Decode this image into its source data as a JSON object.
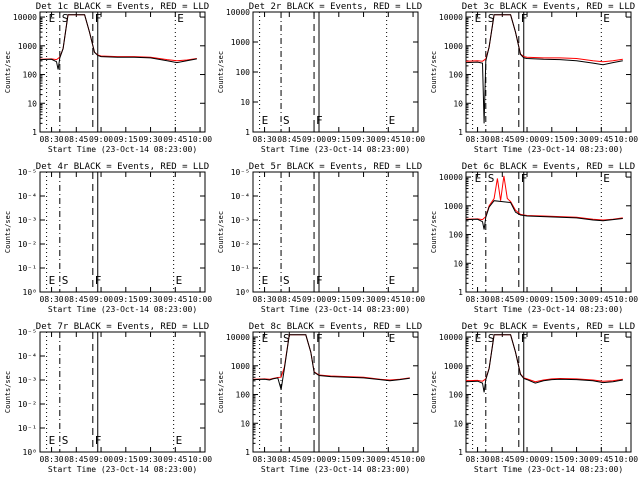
{
  "figure": {
    "xlabel": "Start Time (23-Oct-14 08:23:00)",
    "ylabel": "Counts/sec"
  },
  "chart_data": [
    {
      "type": "line",
      "title": "Det 1c BLACK = Events, RED = LLD",
      "xlabel": "Start Time (23-Oct-14 08:23:00)",
      "ylabel": "Counts/sec",
      "ylog": true,
      "yticks": [
        "1",
        "10",
        "100",
        "1000",
        "10000"
      ],
      "xticks": [
        "08:30",
        "08:45",
        "09:00",
        "09:15",
        "09:30",
        "09:45",
        "10:00"
      ],
      "markers": [
        {
          "label": "E",
          "style": "dotted",
          "time": "08:27"
        },
        {
          "label": "S",
          "style": "dashdot",
          "time": "08:35"
        },
        {
          "label": "F",
          "style": "dashed",
          "time": "08:55"
        },
        {
          "label": "",
          "style": "solid",
          "time": "08:58"
        },
        {
          "label": "E",
          "style": "dotted",
          "time": "09:45"
        }
      ],
      "series": [
        {
          "name": "Events",
          "color": "#000000",
          "x": [
            "08:23",
            "08:30",
            "08:33",
            "08:34",
            "08:35",
            "08:37",
            "08:40",
            "08:50",
            "08:53",
            "08:56",
            "08:58",
            "09:00",
            "09:10",
            "09:20",
            "09:30",
            "09:40",
            "09:46",
            "09:52",
            "09:58"
          ],
          "y": [
            330,
            340,
            280,
            150,
            380,
            800,
            12000,
            12000,
            3000,
            600,
            460,
            420,
            400,
            400,
            380,
            300,
            260,
            300,
            350
          ]
        },
        {
          "name": "LLD",
          "color": "#ff0000",
          "x": [
            "08:23",
            "08:30",
            "08:33",
            "08:35",
            "08:37",
            "08:40",
            "08:50",
            "08:53",
            "08:56",
            "08:58",
            "09:00",
            "09:10",
            "09:20",
            "09:30",
            "09:40",
            "09:46",
            "09:52",
            "09:58"
          ],
          "y": [
            340,
            350,
            330,
            400,
            800,
            12000,
            12000,
            3000,
            600,
            480,
            440,
            420,
            420,
            400,
            330,
            300,
            320,
            360
          ]
        }
      ]
    },
    {
      "type": "line",
      "title": "Det 2r BLACK = Events, RED = LLD",
      "xlabel": "Start Time (23-Oct-14 08:23:00)",
      "ylabel": "Counts/sec",
      "ylog": true,
      "yticks": [
        "1",
        "10",
        "100",
        "1000",
        "10000"
      ],
      "xticks": [
        "08:30",
        "08:45",
        "09:00",
        "09:15",
        "09:30",
        "09:45",
        "10:00"
      ],
      "markers": [
        {
          "label": "E",
          "style": "dotted",
          "time": "08:27"
        },
        {
          "label": "S",
          "style": "dashdot",
          "time": "08:40"
        },
        {
          "label": "F",
          "style": "dashed",
          "time": "09:00"
        },
        {
          "label": "",
          "style": "solid",
          "time": "09:03"
        },
        {
          "label": "E",
          "style": "dotted",
          "time": "09:44"
        }
      ],
      "series": []
    },
    {
      "type": "line",
      "title": "Det 3c BLACK = Events, RED = LLD",
      "xlabel": "Start Time (23-Oct-14 08:23:00)",
      "ylabel": "Counts/sec",
      "ylog": true,
      "yticks": [
        "1",
        "10",
        "100",
        "1000",
        "10000"
      ],
      "xticks": [
        "08:30",
        "08:45",
        "09:00",
        "09:15",
        "09:30",
        "09:45",
        "10:00"
      ],
      "markers": [
        {
          "label": "E",
          "style": "dotted",
          "time": "08:27"
        },
        {
          "label": "S",
          "style": "dashdot",
          "time": "08:35"
        },
        {
          "label": "F",
          "style": "dashed",
          "time": "08:55"
        },
        {
          "label": "",
          "style": "solid",
          "time": "08:58"
        },
        {
          "label": "E",
          "style": "dotted",
          "time": "09:45"
        }
      ],
      "series": [
        {
          "name": "Events",
          "color": "#000000",
          "x": [
            "08:23",
            "08:30",
            "08:33",
            "08:34",
            "08:35",
            "08:37",
            "08:40",
            "08:50",
            "08:53",
            "08:56",
            "08:58",
            "09:00",
            "09:10",
            "09:20",
            "09:30",
            "09:40",
            "09:46",
            "09:52",
            "09:58"
          ],
          "y": [
            260,
            270,
            250,
            2,
            300,
            900,
            12000,
            12000,
            3000,
            500,
            380,
            360,
            340,
            330,
            300,
            250,
            220,
            260,
            300
          ]
        },
        {
          "name": "LLD",
          "color": "#ff0000",
          "x": [
            "08:23",
            "08:30",
            "08:33",
            "08:35",
            "08:37",
            "08:40",
            "08:50",
            "08:53",
            "08:56",
            "08:58",
            "09:00",
            "09:10",
            "09:20",
            "09:30",
            "09:40",
            "09:46",
            "09:52",
            "09:58"
          ],
          "y": [
            290,
            300,
            290,
            350,
            900,
            12000,
            12000,
            3000,
            520,
            420,
            400,
            380,
            380,
            360,
            300,
            280,
            300,
            340
          ]
        }
      ]
    },
    {
      "type": "line",
      "title": "Det 4r BLACK = Events, RED = LLD",
      "xlabel": "Start Time (23-Oct-14 08:23:00)",
      "ylabel": "Counts/sec",
      "ylog": true,
      "yticks": [
        "10⁰",
        "10⁻¹",
        "10⁻²",
        "10⁻³",
        "10⁻⁴",
        "10⁻⁵"
      ],
      "xticks": [
        "08:30",
        "08:45",
        "09:00",
        "09:15",
        "09:30",
        "09:45",
        "10:00"
      ],
      "markers": [
        {
          "label": "E",
          "style": "dotted",
          "time": "08:27"
        },
        {
          "label": "S",
          "style": "dashdot",
          "time": "08:35"
        },
        {
          "label": "F",
          "style": "dashed",
          "time": "08:55"
        },
        {
          "label": "",
          "style": "solid",
          "time": "08:58"
        },
        {
          "label": "E",
          "style": "dotted",
          "time": "09:44"
        }
      ],
      "series": []
    },
    {
      "type": "line",
      "title": "Det 5r BLACK = Events, RED = LLD",
      "xlabel": "Start Time (23-Oct-14 08:23:00)",
      "ylabel": "Counts/sec",
      "ylog": true,
      "yticks": [
        "10⁰",
        "10⁻¹",
        "10⁻²",
        "10⁻³",
        "10⁻⁴",
        "10⁻⁵"
      ],
      "xticks": [
        "08:30",
        "08:45",
        "09:00",
        "09:15",
        "09:30",
        "09:45",
        "10:00"
      ],
      "markers": [
        {
          "label": "E",
          "style": "dotted",
          "time": "08:27"
        },
        {
          "label": "S",
          "style": "dashdot",
          "time": "08:40"
        },
        {
          "label": "F",
          "style": "dashed",
          "time": "09:00"
        },
        {
          "label": "",
          "style": "solid",
          "time": "09:03"
        },
        {
          "label": "E",
          "style": "dotted",
          "time": "09:44"
        }
      ],
      "series": []
    },
    {
      "type": "line",
      "title": "Det 6c BLACK = Events, RED = LLD",
      "xlabel": "Start Time (23-Oct-14 08:23:00)",
      "ylabel": "Counts/sec",
      "ylog": true,
      "yticks": [
        "1",
        "10",
        "100",
        "1000",
        "10000"
      ],
      "xticks": [
        "08:30",
        "08:45",
        "09:00",
        "09:15",
        "09:30",
        "09:45",
        "10:00"
      ],
      "markers": [
        {
          "label": "E",
          "style": "dotted",
          "time": "08:27"
        },
        {
          "label": "S",
          "style": "dashdot",
          "time": "08:35"
        },
        {
          "label": "F",
          "style": "dashed",
          "time": "08:55"
        },
        {
          "label": "",
          "style": "solid",
          "time": "08:58"
        },
        {
          "label": "E",
          "style": "dotted",
          "time": "09:45"
        }
      ],
      "series": [
        {
          "name": "Events",
          "color": "#000000",
          "x": [
            "08:23",
            "08:30",
            "08:33",
            "08:34",
            "08:35",
            "08:37",
            "08:40",
            "08:45",
            "08:50",
            "08:53",
            "08:56",
            "08:58",
            "09:00",
            "09:10",
            "09:20",
            "09:30",
            "09:40",
            "09:46",
            "09:52",
            "09:58"
          ],
          "y": [
            330,
            340,
            280,
            150,
            400,
            900,
            1500,
            1400,
            1300,
            600,
            480,
            460,
            440,
            420,
            400,
            380,
            320,
            300,
            330,
            360
          ]
        },
        {
          "name": "LLD",
          "color": "#ff0000",
          "x": [
            "08:23",
            "08:30",
            "08:33",
            "08:35",
            "08:37",
            "08:40",
            "08:42",
            "08:44",
            "08:46",
            "08:48",
            "08:50",
            "08:53",
            "08:56",
            "08:58",
            "09:00",
            "09:10",
            "09:20",
            "09:30",
            "09:40",
            "09:46",
            "09:52",
            "09:58"
          ],
          "y": [
            340,
            350,
            330,
            420,
            1000,
            1800,
            9000,
            1500,
            11000,
            1800,
            1400,
            700,
            500,
            480,
            460,
            440,
            420,
            400,
            340,
            320,
            340,
            380
          ]
        }
      ]
    },
    {
      "type": "line",
      "title": "Det 7r BLACK = Events, RED = LLD",
      "xlabel": "Start Time (23-Oct-14 08:23:00)",
      "ylabel": "Counts/sec",
      "ylog": true,
      "yticks": [
        "10⁰",
        "10⁻¹",
        "10⁻²",
        "10⁻³",
        "10⁻⁴",
        "10⁻⁵"
      ],
      "xticks": [
        "08:30",
        "08:45",
        "09:00",
        "09:15",
        "09:30",
        "09:45",
        "10:00"
      ],
      "markers": [
        {
          "label": "E",
          "style": "dotted",
          "time": "08:27"
        },
        {
          "label": "S",
          "style": "dashdot",
          "time": "08:35"
        },
        {
          "label": "F",
          "style": "dashed",
          "time": "08:55"
        },
        {
          "label": "",
          "style": "solid",
          "time": "08:58"
        },
        {
          "label": "E",
          "style": "dotted",
          "time": "09:44"
        }
      ],
      "series": []
    },
    {
      "type": "line",
      "title": "Det 8c BLACK = Events, RED = LLD",
      "xlabel": "Start Time (23-Oct-14 08:23:00)",
      "ylabel": "Counts/sec",
      "ylog": true,
      "yticks": [
        "1",
        "10",
        "100",
        "1000",
        "10000"
      ],
      "xticks": [
        "08:30",
        "08:45",
        "09:00",
        "09:15",
        "09:30",
        "09:45",
        "10:00"
      ],
      "markers": [
        {
          "label": "E",
          "style": "dotted",
          "time": "08:27"
        },
        {
          "label": "S",
          "style": "dashdot",
          "time": "08:40"
        },
        {
          "label": "F",
          "style": "dashed",
          "time": "09:00"
        },
        {
          "label": "",
          "style": "solid",
          "time": "09:03"
        },
        {
          "label": "E",
          "style": "dotted",
          "time": "09:44"
        }
      ],
      "series": [
        {
          "name": "Events",
          "color": "#000000",
          "x": [
            "08:23",
            "08:30",
            "08:33",
            "08:35",
            "08:38",
            "08:40",
            "08:42",
            "08:45",
            "08:55",
            "08:58",
            "09:00",
            "09:03",
            "09:10",
            "09:20",
            "09:30",
            "09:40",
            "09:46",
            "09:52",
            "09:58"
          ],
          "y": [
            330,
            340,
            320,
            350,
            380,
            150,
            800,
            12000,
            12000,
            3000,
            600,
            460,
            420,
            400,
            380,
            330,
            300,
            330,
            370
          ]
        },
        {
          "name": "LLD",
          "color": "#ff0000",
          "x": [
            "08:23",
            "08:30",
            "08:33",
            "08:35",
            "08:38",
            "08:40",
            "08:42",
            "08:45",
            "08:55",
            "08:58",
            "09:00",
            "09:03",
            "09:10",
            "09:20",
            "09:30",
            "09:40",
            "09:46",
            "09:52",
            "09:58"
          ],
          "y": [
            340,
            350,
            340,
            360,
            390,
            400,
            900,
            12000,
            12000,
            3000,
            620,
            480,
            440,
            420,
            400,
            340,
            320,
            340,
            380
          ]
        }
      ]
    },
    {
      "type": "line",
      "title": "Det 9c BLACK = Events, RED = LLD",
      "xlabel": "Start Time (23-Oct-14 08:23:00)",
      "ylabel": "Counts/sec",
      "ylog": true,
      "yticks": [
        "1",
        "10",
        "100",
        "1000",
        "10000"
      ],
      "xticks": [
        "08:30",
        "08:45",
        "09:00",
        "09:15",
        "09:30",
        "09:45",
        "10:00"
      ],
      "markers": [
        {
          "label": "E",
          "style": "dotted",
          "time": "08:27"
        },
        {
          "label": "S",
          "style": "dashdot",
          "time": "08:35"
        },
        {
          "label": "F",
          "style": "dashed",
          "time": "08:55"
        },
        {
          "label": "",
          "style": "solid",
          "time": "08:58"
        },
        {
          "label": "E",
          "style": "dotted",
          "time": "09:45"
        }
      ],
      "series": [
        {
          "name": "Events",
          "color": "#000000",
          "x": [
            "08:23",
            "08:30",
            "08:33",
            "08:34",
            "08:35",
            "08:37",
            "08:40",
            "08:50",
            "08:53",
            "08:56",
            "08:58",
            "09:00",
            "09:05",
            "09:10",
            "09:15",
            "09:20",
            "09:30",
            "09:40",
            "09:46",
            "09:52",
            "09:58"
          ],
          "y": [
            280,
            290,
            250,
            120,
            330,
            800,
            12000,
            12000,
            3000,
            500,
            360,
            330,
            250,
            300,
            330,
            340,
            330,
            300,
            260,
            280,
            320
          ]
        },
        {
          "name": "LLD",
          "color": "#ff0000",
          "x": [
            "08:23",
            "08:30",
            "08:33",
            "08:35",
            "08:37",
            "08:40",
            "08:50",
            "08:53",
            "08:56",
            "08:58",
            "09:00",
            "09:05",
            "09:10",
            "09:15",
            "09:20",
            "09:30",
            "09:40",
            "09:46",
            "09:52",
            "09:58"
          ],
          "y": [
            300,
            310,
            290,
            350,
            820,
            12000,
            12000,
            3000,
            520,
            380,
            350,
            280,
            320,
            350,
            360,
            350,
            320,
            290,
            300,
            340
          ]
        }
      ]
    }
  ]
}
